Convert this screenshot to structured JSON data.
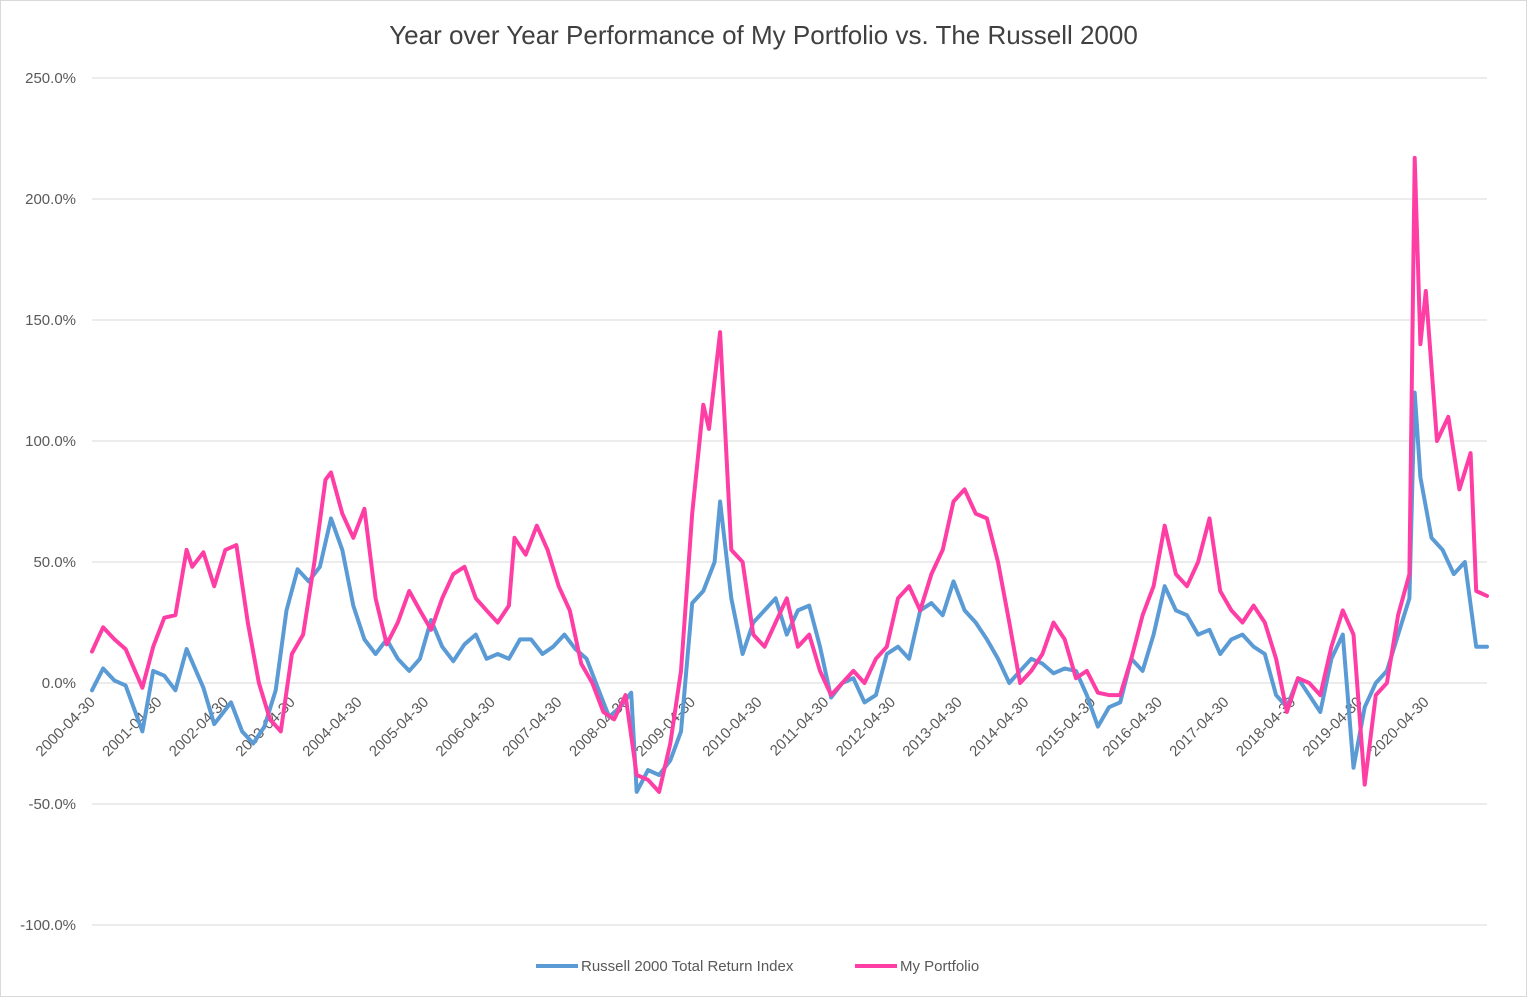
{
  "chart_data": {
    "type": "line",
    "title": "Year over Year Performance of My Portfolio vs. The Russell 2000",
    "xlabel": "",
    "ylabel": "",
    "ylim": [
      -1.0,
      2.5
    ],
    "y_ticks": [
      "-100.0%",
      "-50.0%",
      "0.0%",
      "50.0%",
      "100.0%",
      "150.0%",
      "200.0%",
      "250.0%"
    ],
    "y_tick_values": [
      -1.0,
      -0.5,
      0.0,
      0.5,
      1.0,
      1.5,
      2.0,
      2.5
    ],
    "x_ticks": [
      "2000-04-30",
      "2001-04-30",
      "2002-04-30",
      "2003-04-30",
      "2004-04-30",
      "2005-04-30",
      "2006-04-30",
      "2007-04-30",
      "2008-04-30",
      "2009-04-30",
      "2010-04-30",
      "2011-04-30",
      "2012-04-30",
      "2013-04-30",
      "2014-04-30",
      "2015-04-30",
      "2016-04-30",
      "2017-04-30",
      "2018-04-30",
      "2019-04-30",
      "2020-04-30"
    ],
    "x_range": [
      "2000-04-30",
      "2021-03-31"
    ],
    "grid": true,
    "legend_position": "bottom",
    "series": [
      {
        "name": "Russell 2000 Total Return Index",
        "color": "#5b9bd5",
        "points": [
          [
            "2000-04-30",
            -0.03
          ],
          [
            "2000-06-30",
            0.06
          ],
          [
            "2000-08-31",
            0.01
          ],
          [
            "2000-10-31",
            -0.01
          ],
          [
            "2001-01-31",
            -0.2
          ],
          [
            "2001-03-31",
            0.05
          ],
          [
            "2001-05-31",
            0.03
          ],
          [
            "2001-07-31",
            -0.03
          ],
          [
            "2001-09-30",
            0.14
          ],
          [
            "2001-12-31",
            -0.02
          ],
          [
            "2002-02-28",
            -0.17
          ],
          [
            "2002-05-31",
            -0.08
          ],
          [
            "2002-07-31",
            -0.2
          ],
          [
            "2002-09-30",
            -0.25
          ],
          [
            "2002-11-30",
            -0.18
          ],
          [
            "2003-01-31",
            -0.03
          ],
          [
            "2003-03-31",
            0.3
          ],
          [
            "2003-05-31",
            0.47
          ],
          [
            "2003-07-31",
            0.42
          ],
          [
            "2003-09-30",
            0.48
          ],
          [
            "2003-11-30",
            0.68
          ],
          [
            "2004-01-31",
            0.55
          ],
          [
            "2004-03-31",
            0.32
          ],
          [
            "2004-05-31",
            0.18
          ],
          [
            "2004-07-31",
            0.12
          ],
          [
            "2004-09-30",
            0.18
          ],
          [
            "2004-11-30",
            0.1
          ],
          [
            "2005-01-31",
            0.05
          ],
          [
            "2005-03-31",
            0.1
          ],
          [
            "2005-05-31",
            0.26
          ],
          [
            "2005-07-31",
            0.15
          ],
          [
            "2005-09-30",
            0.09
          ],
          [
            "2005-11-30",
            0.16
          ],
          [
            "2006-01-31",
            0.2
          ],
          [
            "2006-03-31",
            0.1
          ],
          [
            "2006-05-31",
            0.12
          ],
          [
            "2006-07-31",
            0.1
          ],
          [
            "2006-09-30",
            0.18
          ],
          [
            "2006-11-30",
            0.18
          ],
          [
            "2007-01-31",
            0.12
          ],
          [
            "2007-03-31",
            0.15
          ],
          [
            "2007-05-31",
            0.2
          ],
          [
            "2007-07-31",
            0.14
          ],
          [
            "2007-09-30",
            0.1
          ],
          [
            "2007-11-30",
            -0.02
          ],
          [
            "2008-01-31",
            -0.14
          ],
          [
            "2008-03-31",
            -0.1
          ],
          [
            "2008-05-31",
            -0.04
          ],
          [
            "2008-06-30",
            -0.45
          ],
          [
            "2008-08-31",
            -0.36
          ],
          [
            "2008-10-31",
            -0.38
          ],
          [
            "2008-12-31",
            -0.32
          ],
          [
            "2009-02-28",
            -0.2
          ],
          [
            "2009-04-30",
            0.33
          ],
          [
            "2009-06-30",
            0.38
          ],
          [
            "2009-08-31",
            0.5
          ],
          [
            "2009-09-30",
            0.75
          ],
          [
            "2009-11-30",
            0.35
          ],
          [
            "2010-01-31",
            0.12
          ],
          [
            "2010-03-31",
            0.25
          ],
          [
            "2010-05-31",
            0.3
          ],
          [
            "2010-07-31",
            0.35
          ],
          [
            "2010-09-30",
            0.2
          ],
          [
            "2010-11-30",
            0.3
          ],
          [
            "2011-01-31",
            0.32
          ],
          [
            "2011-03-31",
            0.15
          ],
          [
            "2011-05-31",
            -0.06
          ],
          [
            "2011-07-31",
            0.0
          ],
          [
            "2011-09-30",
            0.02
          ],
          [
            "2011-11-30",
            -0.08
          ],
          [
            "2012-01-31",
            -0.05
          ],
          [
            "2012-03-31",
            0.12
          ],
          [
            "2012-05-31",
            0.15
          ],
          [
            "2012-07-31",
            0.1
          ],
          [
            "2012-09-30",
            0.3
          ],
          [
            "2012-11-30",
            0.33
          ],
          [
            "2013-01-31",
            0.28
          ],
          [
            "2013-03-31",
            0.42
          ],
          [
            "2013-05-31",
            0.3
          ],
          [
            "2013-07-31",
            0.25
          ],
          [
            "2013-09-30",
            0.18
          ],
          [
            "2013-11-30",
            0.1
          ],
          [
            "2014-01-31",
            0.0
          ],
          [
            "2014-03-31",
            0.05
          ],
          [
            "2014-05-31",
            0.1
          ],
          [
            "2014-07-31",
            0.08
          ],
          [
            "2014-09-30",
            0.04
          ],
          [
            "2014-11-30",
            0.06
          ],
          [
            "2015-01-31",
            0.05
          ],
          [
            "2015-03-31",
            -0.05
          ],
          [
            "2015-05-31",
            -0.18
          ],
          [
            "2015-07-31",
            -0.1
          ],
          [
            "2015-09-30",
            -0.08
          ],
          [
            "2015-11-30",
            0.1
          ],
          [
            "2016-01-31",
            0.05
          ],
          [
            "2016-03-31",
            0.2
          ],
          [
            "2016-05-31",
            0.4
          ],
          [
            "2016-07-31",
            0.3
          ],
          [
            "2016-09-30",
            0.28
          ],
          [
            "2016-11-30",
            0.2
          ],
          [
            "2017-01-31",
            0.22
          ],
          [
            "2017-03-31",
            0.12
          ],
          [
            "2017-05-31",
            0.18
          ],
          [
            "2017-07-31",
            0.2
          ],
          [
            "2017-09-30",
            0.15
          ],
          [
            "2017-11-30",
            0.12
          ],
          [
            "2018-01-31",
            -0.05
          ],
          [
            "2018-03-31",
            -0.1
          ],
          [
            "2018-05-31",
            0.02
          ],
          [
            "2018-07-31",
            -0.05
          ],
          [
            "2018-09-30",
            -0.12
          ],
          [
            "2018-11-30",
            0.1
          ],
          [
            "2019-01-31",
            0.2
          ],
          [
            "2019-03-31",
            -0.35
          ],
          [
            "2019-05-31",
            -0.1
          ],
          [
            "2019-07-31",
            0.0
          ],
          [
            "2019-09-30",
            0.05
          ],
          [
            "2019-11-30",
            0.2
          ],
          [
            "2020-01-31",
            0.35
          ],
          [
            "2020-02-29",
            1.2
          ],
          [
            "2020-03-31",
            0.85
          ],
          [
            "2020-05-31",
            0.6
          ],
          [
            "2020-07-31",
            0.55
          ],
          [
            "2020-09-30",
            0.45
          ],
          [
            "2020-11-30",
            0.5
          ],
          [
            "2021-01-31",
            0.15
          ],
          [
            "2021-03-31",
            0.15
          ]
        ]
      },
      {
        "name": "My Portfolio",
        "color": "#ff3ea5",
        "points": [
          [
            "2000-04-30",
            0.13
          ],
          [
            "2000-06-30",
            0.23
          ],
          [
            "2000-08-31",
            0.18
          ],
          [
            "2000-10-31",
            0.14
          ],
          [
            "2001-01-31",
            -0.02
          ],
          [
            "2001-03-31",
            0.15
          ],
          [
            "2001-05-31",
            0.27
          ],
          [
            "2001-07-31",
            0.28
          ],
          [
            "2001-09-30",
            0.55
          ],
          [
            "2001-10-31",
            0.48
          ],
          [
            "2001-12-31",
            0.54
          ],
          [
            "2002-02-28",
            0.4
          ],
          [
            "2002-04-30",
            0.55
          ],
          [
            "2002-06-30",
            0.57
          ],
          [
            "2002-08-31",
            0.25
          ],
          [
            "2002-10-31",
            0.0
          ],
          [
            "2002-12-31",
            -0.15
          ],
          [
            "2003-02-28",
            -0.2
          ],
          [
            "2003-04-30",
            0.12
          ],
          [
            "2003-06-30",
            0.2
          ],
          [
            "2003-08-31",
            0.5
          ],
          [
            "2003-10-31",
            0.84
          ],
          [
            "2003-11-30",
            0.87
          ],
          [
            "2004-01-31",
            0.7
          ],
          [
            "2004-03-31",
            0.6
          ],
          [
            "2004-05-31",
            0.72
          ],
          [
            "2004-07-31",
            0.35
          ],
          [
            "2004-09-30",
            0.16
          ],
          [
            "2004-11-30",
            0.25
          ],
          [
            "2005-01-31",
            0.38
          ],
          [
            "2005-03-31",
            0.3
          ],
          [
            "2005-05-31",
            0.22
          ],
          [
            "2005-07-31",
            0.35
          ],
          [
            "2005-09-30",
            0.45
          ],
          [
            "2005-11-30",
            0.48
          ],
          [
            "2006-01-31",
            0.35
          ],
          [
            "2006-03-31",
            0.3
          ],
          [
            "2006-05-31",
            0.25
          ],
          [
            "2006-07-31",
            0.32
          ],
          [
            "2006-08-31",
            0.6
          ],
          [
            "2006-10-31",
            0.53
          ],
          [
            "2006-12-31",
            0.65
          ],
          [
            "2007-02-28",
            0.55
          ],
          [
            "2007-04-30",
            0.4
          ],
          [
            "2007-06-30",
            0.3
          ],
          [
            "2007-08-31",
            0.08
          ],
          [
            "2007-10-31",
            0.0
          ],
          [
            "2007-12-31",
            -0.12
          ],
          [
            "2008-02-28",
            -0.15
          ],
          [
            "2008-04-30",
            -0.05
          ],
          [
            "2008-06-30",
            -0.38
          ],
          [
            "2008-08-31",
            -0.4
          ],
          [
            "2008-10-31",
            -0.45
          ],
          [
            "2008-12-31",
            -0.25
          ],
          [
            "2009-02-28",
            0.05
          ],
          [
            "2009-04-30",
            0.7
          ],
          [
            "2009-06-30",
            1.15
          ],
          [
            "2009-07-31",
            1.05
          ],
          [
            "2009-09-30",
            1.45
          ],
          [
            "2009-11-30",
            0.55
          ],
          [
            "2010-01-31",
            0.5
          ],
          [
            "2010-03-31",
            0.2
          ],
          [
            "2010-05-31",
            0.15
          ],
          [
            "2010-07-31",
            0.25
          ],
          [
            "2010-09-30",
            0.35
          ],
          [
            "2010-11-30",
            0.15
          ],
          [
            "2011-01-31",
            0.2
          ],
          [
            "2011-03-31",
            0.05
          ],
          [
            "2011-05-31",
            -0.05
          ],
          [
            "2011-07-31",
            0.0
          ],
          [
            "2011-09-30",
            0.05
          ],
          [
            "2011-11-30",
            0.0
          ],
          [
            "2012-01-31",
            0.1
          ],
          [
            "2012-03-31",
            0.15
          ],
          [
            "2012-05-31",
            0.35
          ],
          [
            "2012-07-31",
            0.4
          ],
          [
            "2012-09-30",
            0.3
          ],
          [
            "2012-11-30",
            0.45
          ],
          [
            "2013-01-31",
            0.55
          ],
          [
            "2013-03-31",
            0.75
          ],
          [
            "2013-05-31",
            0.8
          ],
          [
            "2013-07-31",
            0.7
          ],
          [
            "2013-09-30",
            0.68
          ],
          [
            "2013-11-30",
            0.5
          ],
          [
            "2014-01-31",
            0.25
          ],
          [
            "2014-03-31",
            0.0
          ],
          [
            "2014-05-31",
            0.05
          ],
          [
            "2014-07-31",
            0.12
          ],
          [
            "2014-09-30",
            0.25
          ],
          [
            "2014-11-30",
            0.18
          ],
          [
            "2015-01-31",
            0.02
          ],
          [
            "2015-03-31",
            0.05
          ],
          [
            "2015-05-31",
            -0.04
          ],
          [
            "2015-07-31",
            -0.05
          ],
          [
            "2015-09-30",
            -0.05
          ],
          [
            "2015-11-30",
            0.1
          ],
          [
            "2016-01-31",
            0.28
          ],
          [
            "2016-03-31",
            0.4
          ],
          [
            "2016-05-31",
            0.65
          ],
          [
            "2016-07-31",
            0.45
          ],
          [
            "2016-09-30",
            0.4
          ],
          [
            "2016-11-30",
            0.5
          ],
          [
            "2017-01-31",
            0.68
          ],
          [
            "2017-03-31",
            0.38
          ],
          [
            "2017-05-31",
            0.3
          ],
          [
            "2017-07-31",
            0.25
          ],
          [
            "2017-09-30",
            0.32
          ],
          [
            "2017-11-30",
            0.25
          ],
          [
            "2018-01-31",
            0.1
          ],
          [
            "2018-03-31",
            -0.12
          ],
          [
            "2018-05-31",
            0.02
          ],
          [
            "2018-07-31",
            0.0
          ],
          [
            "2018-09-30",
            -0.05
          ],
          [
            "2018-11-30",
            0.15
          ],
          [
            "2019-01-31",
            0.3
          ],
          [
            "2019-03-31",
            0.2
          ],
          [
            "2019-05-31",
            -0.42
          ],
          [
            "2019-07-31",
            -0.05
          ],
          [
            "2019-09-30",
            0.0
          ],
          [
            "2019-11-30",
            0.28
          ],
          [
            "2020-01-31",
            0.45
          ],
          [
            "2020-02-29",
            2.17
          ],
          [
            "2020-03-31",
            1.4
          ],
          [
            "2020-04-30",
            1.62
          ],
          [
            "2020-06-30",
            1.0
          ],
          [
            "2020-08-31",
            1.1
          ],
          [
            "2020-10-31",
            0.8
          ],
          [
            "2020-12-31",
            0.95
          ],
          [
            "2021-01-31",
            0.38
          ],
          [
            "2021-03-31",
            0.36
          ]
        ]
      }
    ]
  }
}
